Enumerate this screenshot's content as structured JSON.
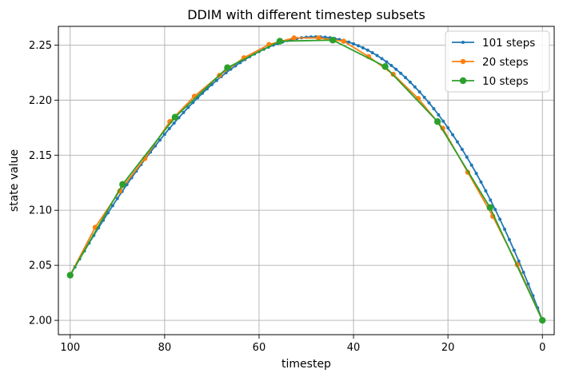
{
  "chart_data": {
    "type": "line",
    "title": "DDIM with different timestep subsets",
    "xlabel": "timestep",
    "ylabel": "state value",
    "xlim": [
      102.5,
      -2.5
    ],
    "ylim": [
      1.987,
      2.267
    ],
    "x_inverted": true,
    "xticks": [
      100,
      80,
      60,
      40,
      20,
      0
    ],
    "yticks": [
      2.0,
      2.05,
      2.1,
      2.15,
      2.2,
      2.25
    ],
    "ytick_labels": [
      "2.00",
      "2.05",
      "2.10",
      "2.15",
      "2.20",
      "2.25"
    ],
    "grid": true,
    "legend_position": "top-right",
    "series": [
      {
        "name": "101 steps",
        "color": "#1f77b4",
        "marker_size": 2,
        "curve": {
          "model": "parabola",
          "start": [
            100,
            2.041
          ],
          "end": [
            0,
            2.0
          ],
          "peak": [
            48,
            2.2575
          ],
          "step": 1
        }
      },
      {
        "name": "20 steps",
        "color": "#ff7f0e",
        "marker_size": 3.2,
        "x": [
          100,
          94.7,
          89.5,
          84.2,
          78.9,
          73.7,
          68.4,
          63.2,
          57.9,
          52.6,
          47.4,
          42.1,
          36.8,
          31.6,
          26.3,
          21.1,
          15.8,
          10.5,
          5.3,
          0
        ],
        "y": [
          2.041,
          2.0845,
          2.1175,
          2.147,
          2.1805,
          2.2035,
          2.2225,
          2.2385,
          2.2505,
          2.2565,
          2.2565,
          2.2535,
          2.2395,
          2.2235,
          2.2015,
          2.1745,
          2.1345,
          2.0945,
          2.0505,
          2.0
        ]
      },
      {
        "name": "10 steps",
        "color": "#2ca02c",
        "marker_size": 4.2,
        "x": [
          100,
          88.9,
          77.8,
          66.7,
          55.6,
          44.4,
          33.3,
          22.2,
          11.1,
          0
        ],
        "y": [
          2.041,
          2.1235,
          2.1845,
          2.2295,
          2.2535,
          2.2545,
          2.2305,
          2.1805,
          2.1025,
          2.0
        ]
      }
    ]
  }
}
